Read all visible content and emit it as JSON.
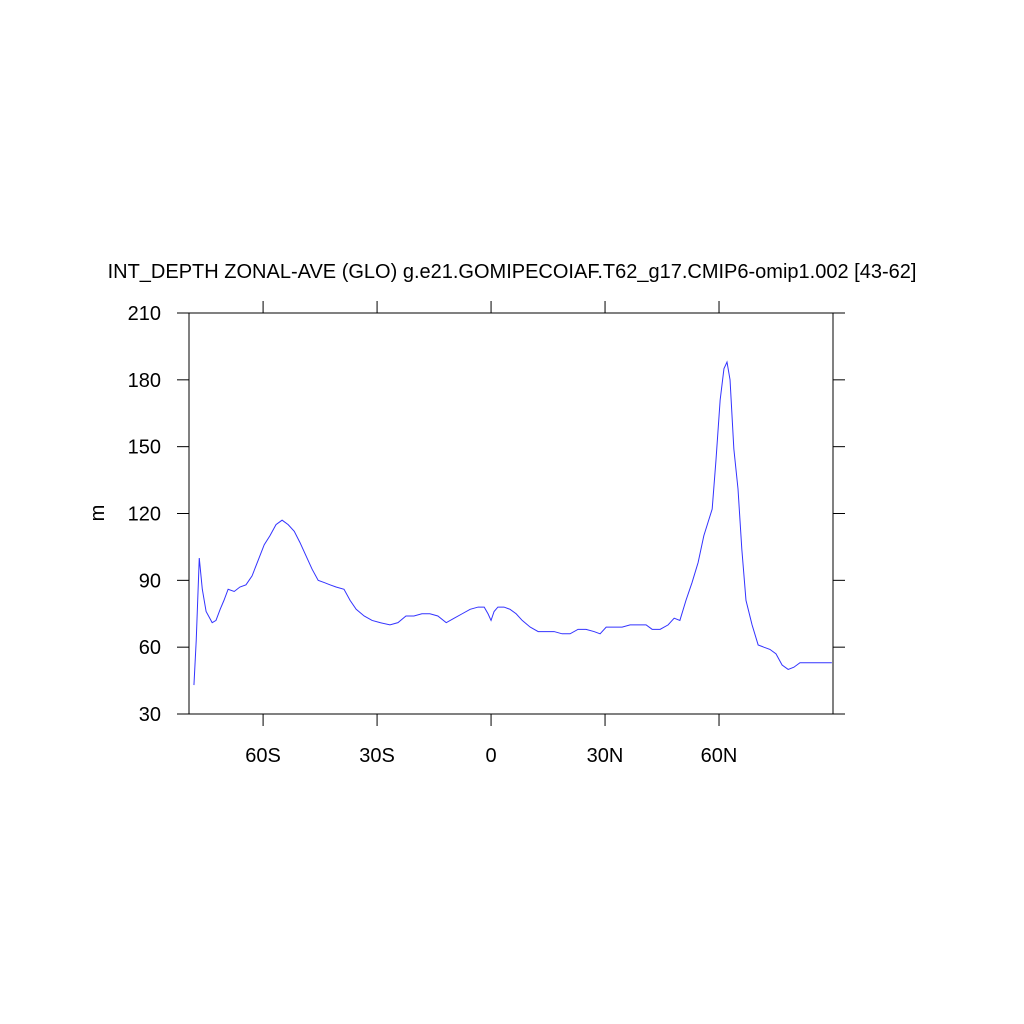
{
  "chart_data": {
    "type": "line",
    "title": "INT_DEPTH ZONAL-AVE (GLO) g.e21.GOMIPECOIAF.T62_g17.CMIP6-omip1.002 [43-62]",
    "y_label": "m",
    "x": [
      -78.2,
      -77.6,
      -76.8,
      -76,
      -75,
      -73.4,
      -72.4,
      -71.3,
      -70.3,
      -69.2,
      -67.6,
      -66.1,
      -64.5,
      -62.9,
      -61.3,
      -59.7,
      -58.2,
      -56.6,
      -55,
      -53.4,
      -51.8,
      -50.3,
      -48.7,
      -47.1,
      -45.5,
      -43.9,
      -42.4,
      -40.8,
      -38.7,
      -37.1,
      -35.5,
      -33.4,
      -31.3,
      -29.2,
      -26.6,
      -24.5,
      -22.4,
      -20.3,
      -18.2,
      -16.1,
      -14,
      -11.8,
      -9.7,
      -7.6,
      -5.5,
      -3.4,
      -1.8,
      -0.8,
      0,
      0.8,
      1.8,
      3.4,
      5,
      6.6,
      8.2,
      10.3,
      12.4,
      14.5,
      16.6,
      18.7,
      20.8,
      22.9,
      25,
      27.1,
      28.7,
      30.3,
      32.4,
      34.5,
      36.6,
      38.7,
      40.8,
      42.4,
      44.5,
      46.6,
      48.2,
      49.7,
      51.3,
      52.9,
      54.5,
      56,
      57.1,
      58.2,
      59.2,
      60.3,
      61.3,
      62.1,
      62.9,
      63.9,
      65,
      66,
      67.1,
      68.7,
      70.3,
      71.8,
      73.4,
      75,
      76.6,
      78.2,
      79.7,
      81.3,
      84,
      86.6,
      89.7
    ],
    "series": [
      {
        "color": "#3333ff",
        "values": [
          43,
          63,
          100,
          86,
          76,
          71,
          72,
          77,
          81,
          86,
          85,
          87,
          88,
          92,
          99,
          106,
          110,
          115,
          117,
          115,
          112,
          107,
          101,
          95,
          90,
          89,
          88,
          87,
          86,
          81,
          77,
          74,
          72,
          71,
          70,
          71,
          74,
          74,
          75,
          75,
          74,
          71,
          73,
          75,
          77,
          78,
          78,
          75,
          72,
          76,
          78,
          78,
          77,
          75,
          72,
          69,
          67,
          67,
          67,
          66,
          66,
          68,
          68,
          67,
          66,
          69,
          69,
          69,
          70,
          70,
          70,
          68,
          68,
          70,
          73,
          72,
          81,
          89,
          98,
          110,
          116,
          122,
          144,
          171,
          185,
          188,
          180,
          149,
          131,
          104,
          81,
          70,
          61,
          60,
          59,
          57,
          52,
          50,
          51,
          53,
          53,
          53,
          53
        ]
      }
    ],
    "xlim": [
      -79.5,
      90
    ],
    "xticks": [
      {
        "value": -60,
        "label": "60S"
      },
      {
        "value": -30,
        "label": "30S"
      },
      0,
      {
        "value": 30,
        "label": "30N"
      },
      {
        "value": 60,
        "label": "60N"
      }
    ],
    "ylim": [
      30,
      210
    ],
    "yticks": [
      30,
      60,
      90,
      120,
      150,
      180,
      210
    ]
  }
}
